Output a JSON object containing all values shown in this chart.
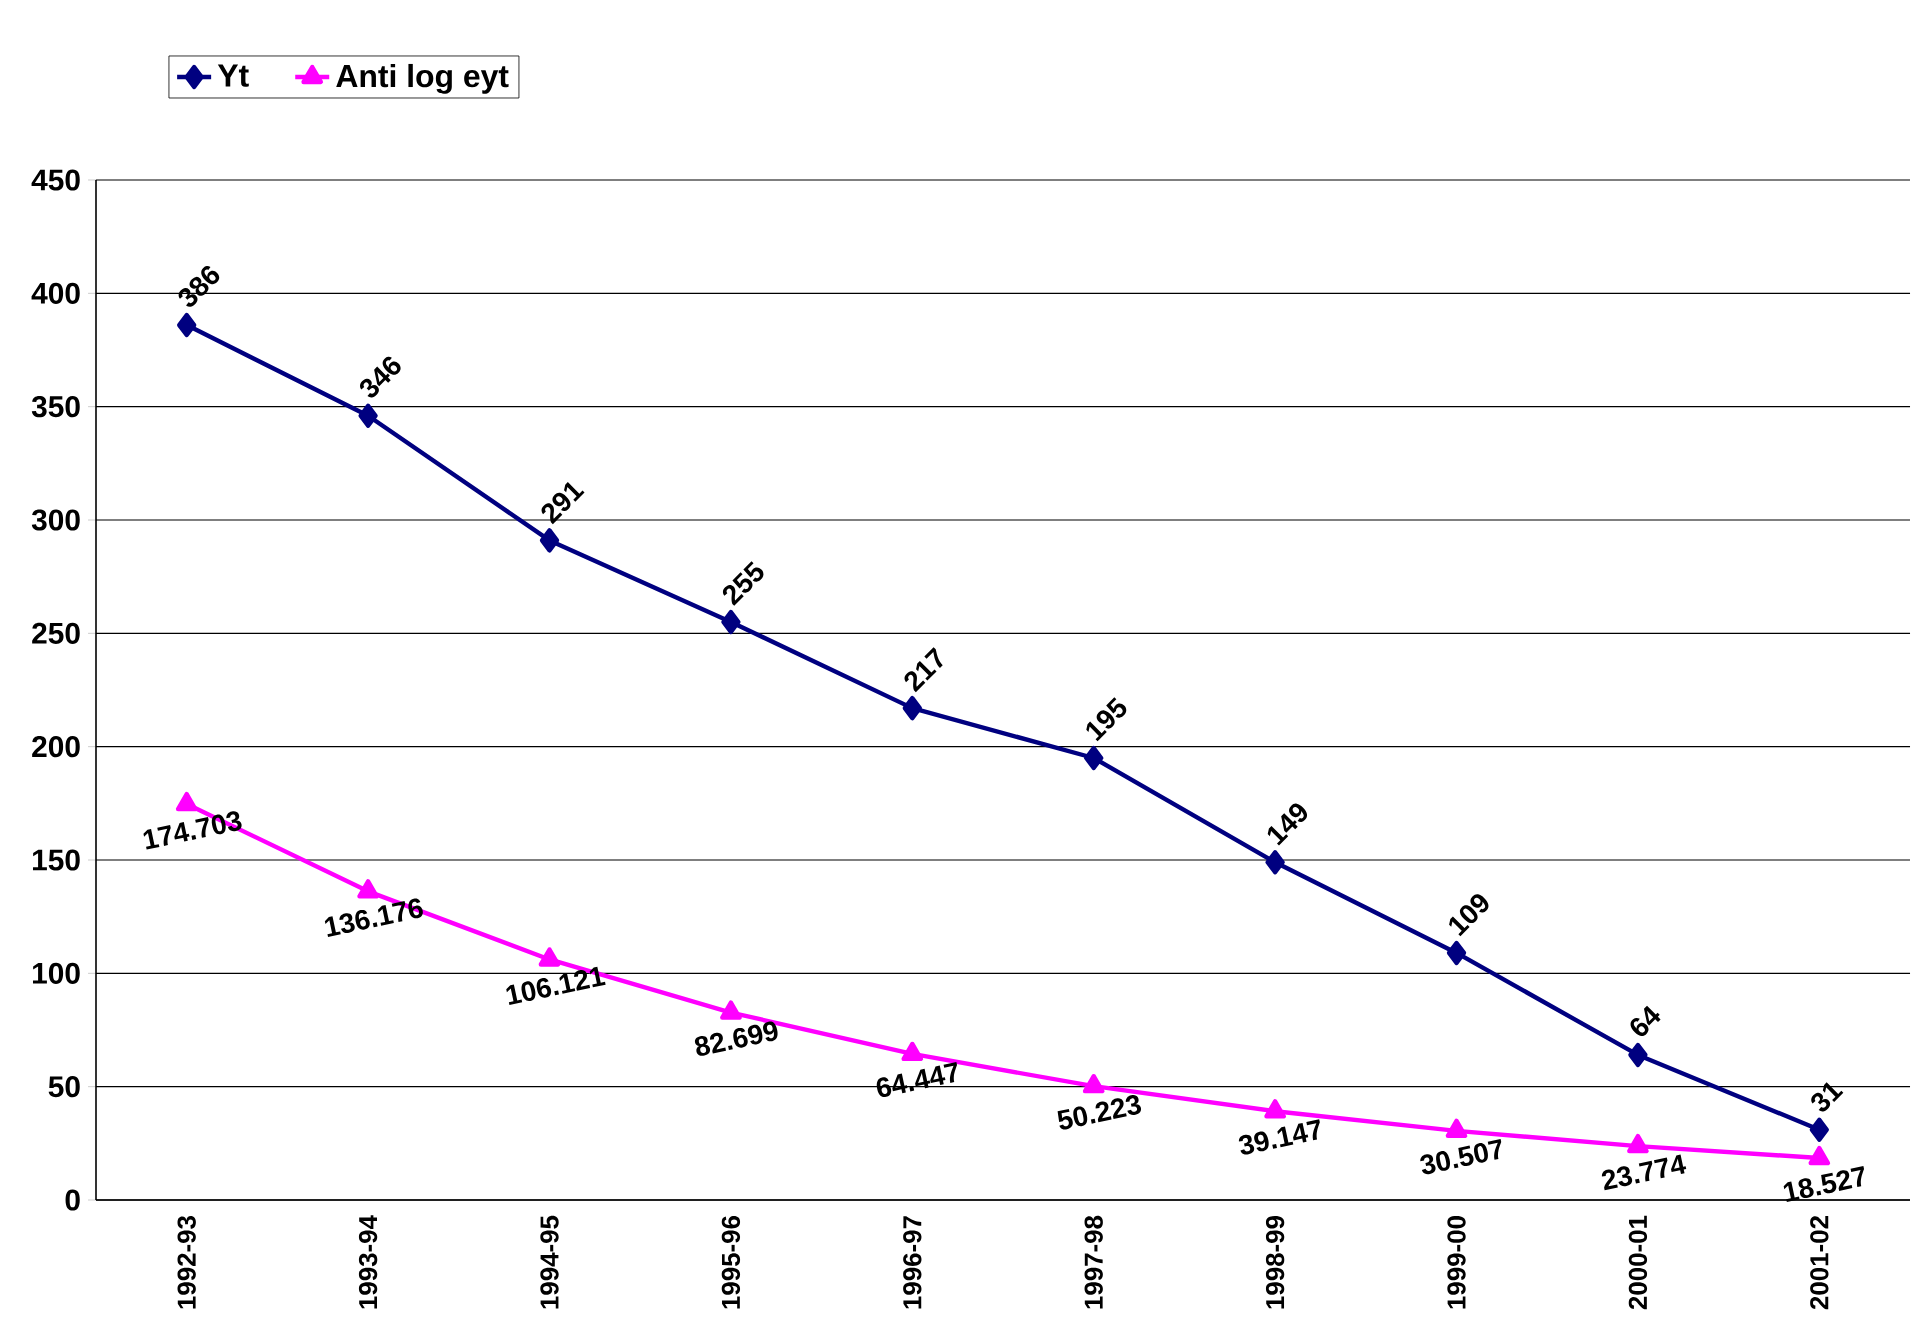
{
  "chart_data": {
    "type": "line",
    "categories": [
      "1992-93",
      "1993-94",
      "1994-95",
      "1995-96",
      "1996-97",
      "1997-98",
      "1998-99",
      "1999-00",
      "2000-01",
      "2001-02"
    ],
    "series": [
      {
        "name": "Yt",
        "color": "#000080",
        "marker": "diamond",
        "values": [
          386,
          346,
          291,
          255,
          217,
          195,
          149,
          109,
          64,
          31
        ]
      },
      {
        "name": "Anti log eyt",
        "color": "#ff00ff",
        "marker": "triangle",
        "values": [
          174.703,
          136.176,
          106.121,
          82.699,
          64.447,
          50.223,
          39.147,
          30.507,
          23.774,
          18.527
        ]
      }
    ],
    "ylim": [
      0,
      450
    ],
    "yticks": [
      0,
      50,
      100,
      150,
      200,
      250,
      300,
      350,
      400,
      450
    ],
    "grid": "y",
    "legend": "top left",
    "data_labels": true,
    "line_style": "solid"
  }
}
